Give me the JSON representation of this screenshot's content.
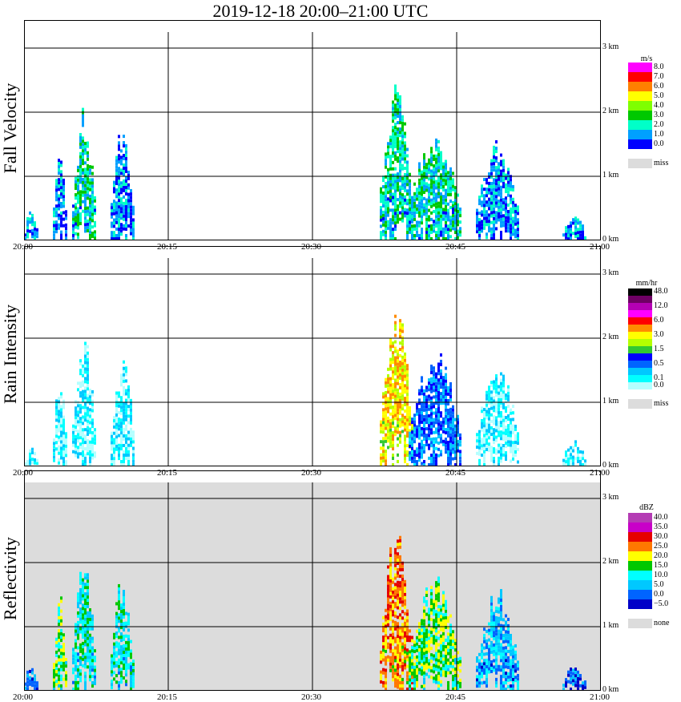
{
  "title": "2019-12-18   20:00–21:00 UTC",
  "x_ticks": [
    "20:00",
    "20:15",
    "20:30",
    "20:45",
    "21:00"
  ],
  "y_ticks": [
    "0 km",
    "1 km",
    "2 km",
    "3 km"
  ],
  "missing_color": "#dcdcdc",
  "panels": [
    {
      "label": "Fall Velocity",
      "unit": "m/s",
      "legend": [
        {
          "label": "8.0",
          "color": "#ff00ff"
        },
        {
          "label": "7.0",
          "color": "#ff0000"
        },
        {
          "label": "6.0",
          "color": "#ff7f00"
        },
        {
          "label": "5.0",
          "color": "#ffff00"
        },
        {
          "label": "4.0",
          "color": "#7fff00"
        },
        {
          "label": "3.0",
          "color": "#00c800"
        },
        {
          "label": "2.0",
          "color": "#00ffc8"
        },
        {
          "label": "1.0",
          "color": "#00a0ff"
        },
        {
          "label": "0.0",
          "color": "#0000ff"
        }
      ],
      "missing_label": "miss",
      "background": "#ffffff"
    },
    {
      "label": "Rain Intensity",
      "unit": "mm/hr",
      "legend": [
        {
          "label": "48.0",
          "color": "#000000"
        },
        {
          "label": "",
          "color": "#6e0064"
        },
        {
          "label": "12.0",
          "color": "#b400b4"
        },
        {
          "label": "",
          "color": "#ff00ff"
        },
        {
          "label": "6.0",
          "color": "#ff0000"
        },
        {
          "label": "",
          "color": "#ff8c00"
        },
        {
          "label": "3.0",
          "color": "#ffff00"
        },
        {
          "label": "",
          "color": "#b4ff00"
        },
        {
          "label": "1.5",
          "color": "#32c832"
        },
        {
          "label": "",
          "color": "#0000ff"
        },
        {
          "label": "0.5",
          "color": "#0064ff"
        },
        {
          "label": "",
          "color": "#00c8ff"
        },
        {
          "label": "0.1",
          "color": "#00ffff"
        },
        {
          "label": "0.0",
          "color": "#b4ffff"
        }
      ],
      "missing_label": "miss",
      "background": "#ffffff"
    },
    {
      "label": "Reflectivity",
      "unit": "dBZ",
      "legend": [
        {
          "label": "40.0",
          "color": "#b43cb4"
        },
        {
          "label": "35.0",
          "color": "#c800c8"
        },
        {
          "label": "30.0",
          "color": "#e60000"
        },
        {
          "label": "25.0",
          "color": "#ff7800"
        },
        {
          "label": "20.0",
          "color": "#ffff00"
        },
        {
          "label": "15.0",
          "color": "#00c800"
        },
        {
          "label": "10.0",
          "color": "#00ffff"
        },
        {
          "label": "5.0",
          "color": "#00c8ff"
        },
        {
          "label": "0.0",
          "color": "#0064ff"
        },
        {
          "label": "−5.0",
          "color": "#0000c8"
        }
      ],
      "missing_label": "none",
      "background": "#dcdcdc"
    }
  ],
  "chart_data": [
    {
      "type": "heatmap",
      "title": "Fall Velocity",
      "xlabel": "",
      "ylabel": "",
      "x_range": [
        "20:00",
        "21:00"
      ],
      "ylim_km": [
        0,
        3.2
      ],
      "grid": true,
      "legend": "right",
      "events": [
        {
          "start": "20:00",
          "end": "20:01",
          "top_km": 0.5,
          "dominant": "1.0"
        },
        {
          "start": "20:03",
          "end": "20:04",
          "top_km": 1.4,
          "dominant": "1.0"
        },
        {
          "start": "20:05",
          "end": "20:07",
          "top_km": 1.9,
          "dominant": "2.0"
        },
        {
          "start": "20:09",
          "end": "20:11",
          "top_km": 1.7,
          "dominant": "1.0"
        },
        {
          "start": "20:37",
          "end": "20:40",
          "top_km": 2.3,
          "dominant": "2.0"
        },
        {
          "start": "20:40",
          "end": "20:45",
          "top_km": 1.6,
          "dominant": "2.0"
        },
        {
          "start": "20:47",
          "end": "20:51",
          "top_km": 1.5,
          "dominant": "1.0"
        },
        {
          "start": "20:56",
          "end": "20:58",
          "top_km": 0.4,
          "dominant": "1.0"
        }
      ]
    },
    {
      "type": "heatmap",
      "title": "Rain Intensity",
      "xlabel": "",
      "ylabel": "",
      "x_range": [
        "20:00",
        "21:00"
      ],
      "ylim_km": [
        0,
        3.2
      ],
      "grid": true,
      "legend": "right",
      "events": [
        {
          "start": "20:00",
          "end": "20:01",
          "top_km": 0.3,
          "dominant": "0.1"
        },
        {
          "start": "20:03",
          "end": "20:04",
          "top_km": 1.4,
          "dominant": "0.1"
        },
        {
          "start": "20:05",
          "end": "20:07",
          "top_km": 1.9,
          "dominant": "0.1"
        },
        {
          "start": "20:09",
          "end": "20:11",
          "top_km": 1.7,
          "dominant": "0.1"
        },
        {
          "start": "20:37",
          "end": "20:40",
          "top_km": 2.3,
          "dominant": "3.0"
        },
        {
          "start": "20:40",
          "end": "20:45",
          "top_km": 1.7,
          "dominant": "0.5"
        },
        {
          "start": "20:47",
          "end": "20:51",
          "top_km": 1.5,
          "dominant": "0.1"
        },
        {
          "start": "20:56",
          "end": "20:58",
          "top_km": 0.4,
          "dominant": "0.1"
        }
      ]
    },
    {
      "type": "heatmap",
      "title": "Reflectivity",
      "xlabel": "",
      "ylabel": "",
      "x_range": [
        "20:00",
        "21:00"
      ],
      "ylim_km": [
        0,
        3.2
      ],
      "grid": true,
      "legend": "right",
      "events": [
        {
          "start": "20:00",
          "end": "20:01",
          "top_km": 0.4,
          "dominant": "0.0"
        },
        {
          "start": "20:03",
          "end": "20:04",
          "top_km": 1.4,
          "dominant": "15.0"
        },
        {
          "start": "20:05",
          "end": "20:07",
          "top_km": 1.9,
          "dominant": "10.0"
        },
        {
          "start": "20:09",
          "end": "20:11",
          "top_km": 1.7,
          "dominant": "10.0"
        },
        {
          "start": "20:37",
          "end": "20:40",
          "top_km": 2.3,
          "dominant": "25.0"
        },
        {
          "start": "20:40",
          "end": "20:45",
          "top_km": 1.7,
          "dominant": "15.0"
        },
        {
          "start": "20:47",
          "end": "20:51",
          "top_km": 1.5,
          "dominant": "5.0"
        },
        {
          "start": "20:56",
          "end": "20:58",
          "top_km": 0.4,
          "dominant": "0.0"
        }
      ]
    }
  ]
}
